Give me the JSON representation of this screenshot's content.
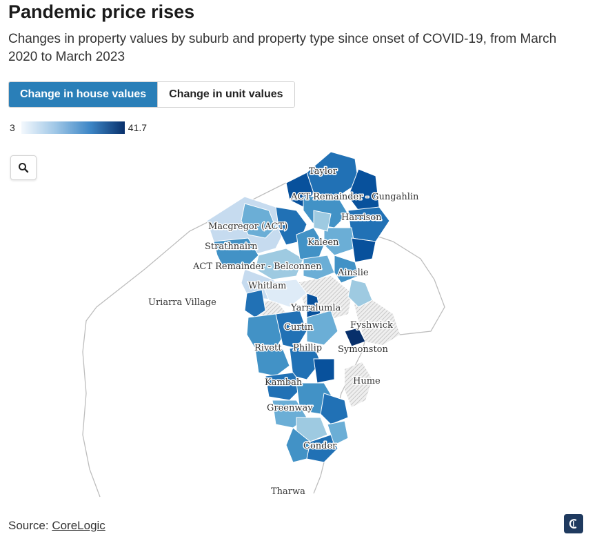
{
  "header": {
    "title": "Pandemic price rises",
    "subtitle": "Changes in property values by suburb and property type since onset of COVID-19, from March 2020 to March 2023"
  },
  "toggle": {
    "house_label": "Change in house values",
    "unit_label": "Change in unit values",
    "selected": "house"
  },
  "legend": {
    "min_label": "3",
    "max_label": "41.7",
    "min_value": 3,
    "max_value": 41.7,
    "color_low": "#f3f8fd",
    "color_high": "#08306b"
  },
  "map": {
    "zoom_icon": "search-icon",
    "labels": {
      "taylor": "Taylor",
      "gungahlin": "ACT Remainder - Gungahlin",
      "harrison": "Harrison",
      "macgregor": "Macgregor (ACT)",
      "kaleen": "Kaleen",
      "strathnairn": "Strathnairn",
      "belconnen": "ACT Remainder - Belconnen",
      "ainslie": "Ainslie",
      "whitlam": "Whitlam",
      "uriarra": "Uriarra Village",
      "yarralumla": "Yarralumla",
      "fyshwick": "Fyshwick",
      "curtin": "Curtin",
      "rivett": "Rivett",
      "phillip": "Phillip",
      "symonston": "Symonston",
      "hume": "Hume",
      "kambah": "Kambah",
      "greenway": "Greenway",
      "conder": "Conder",
      "tharwa": "Tharwa"
    }
  },
  "footer": {
    "source_prefix": "Source: ",
    "source_link": "CoreLogic",
    "logo_icon": "publisher-logo-icon"
  }
}
